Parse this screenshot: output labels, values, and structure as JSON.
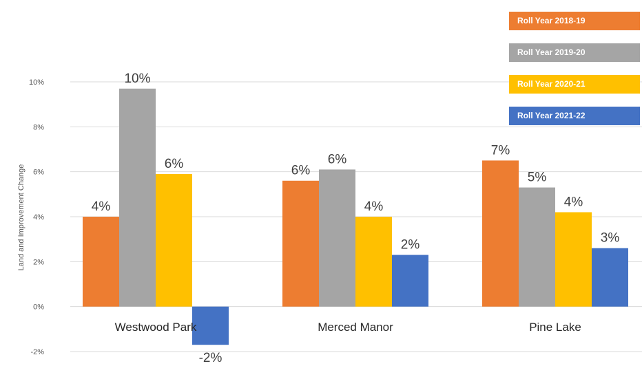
{
  "chart_data": {
    "type": "bar",
    "ylabel": "Land and Improvement Change",
    "ylim": [
      -2,
      10
    ],
    "yticks": [
      "-2%",
      "0%",
      "2%",
      "4%",
      "6%",
      "8%",
      "10%"
    ],
    "categories": [
      "Westwood Park",
      "Merced Manor",
      "Pine Lake"
    ],
    "series": [
      {
        "name": "Roll Year 2018-19",
        "color": "#ED7D31",
        "values": [
          4.0,
          5.6,
          6.5
        ],
        "labels": [
          "4%",
          "6%",
          "7%"
        ]
      },
      {
        "name": "Roll Year 2019-20",
        "color": "#A5A5A5",
        "values": [
          9.7,
          6.1,
          5.3
        ],
        "labels": [
          "10%",
          "6%",
          "5%"
        ]
      },
      {
        "name": "Roll Year 2020-21",
        "color": "#FFC000",
        "values": [
          5.9,
          4.0,
          4.2
        ],
        "labels": [
          "6%",
          "4%",
          "4%"
        ]
      },
      {
        "name": "Roll Year 2021-22",
        "color": "#4472C4",
        "values": [
          -1.7,
          2.3,
          2.6
        ],
        "labels": [
          "-2%",
          "2%",
          "3%"
        ]
      }
    ],
    "grid": true,
    "legend_position": "top-right"
  }
}
